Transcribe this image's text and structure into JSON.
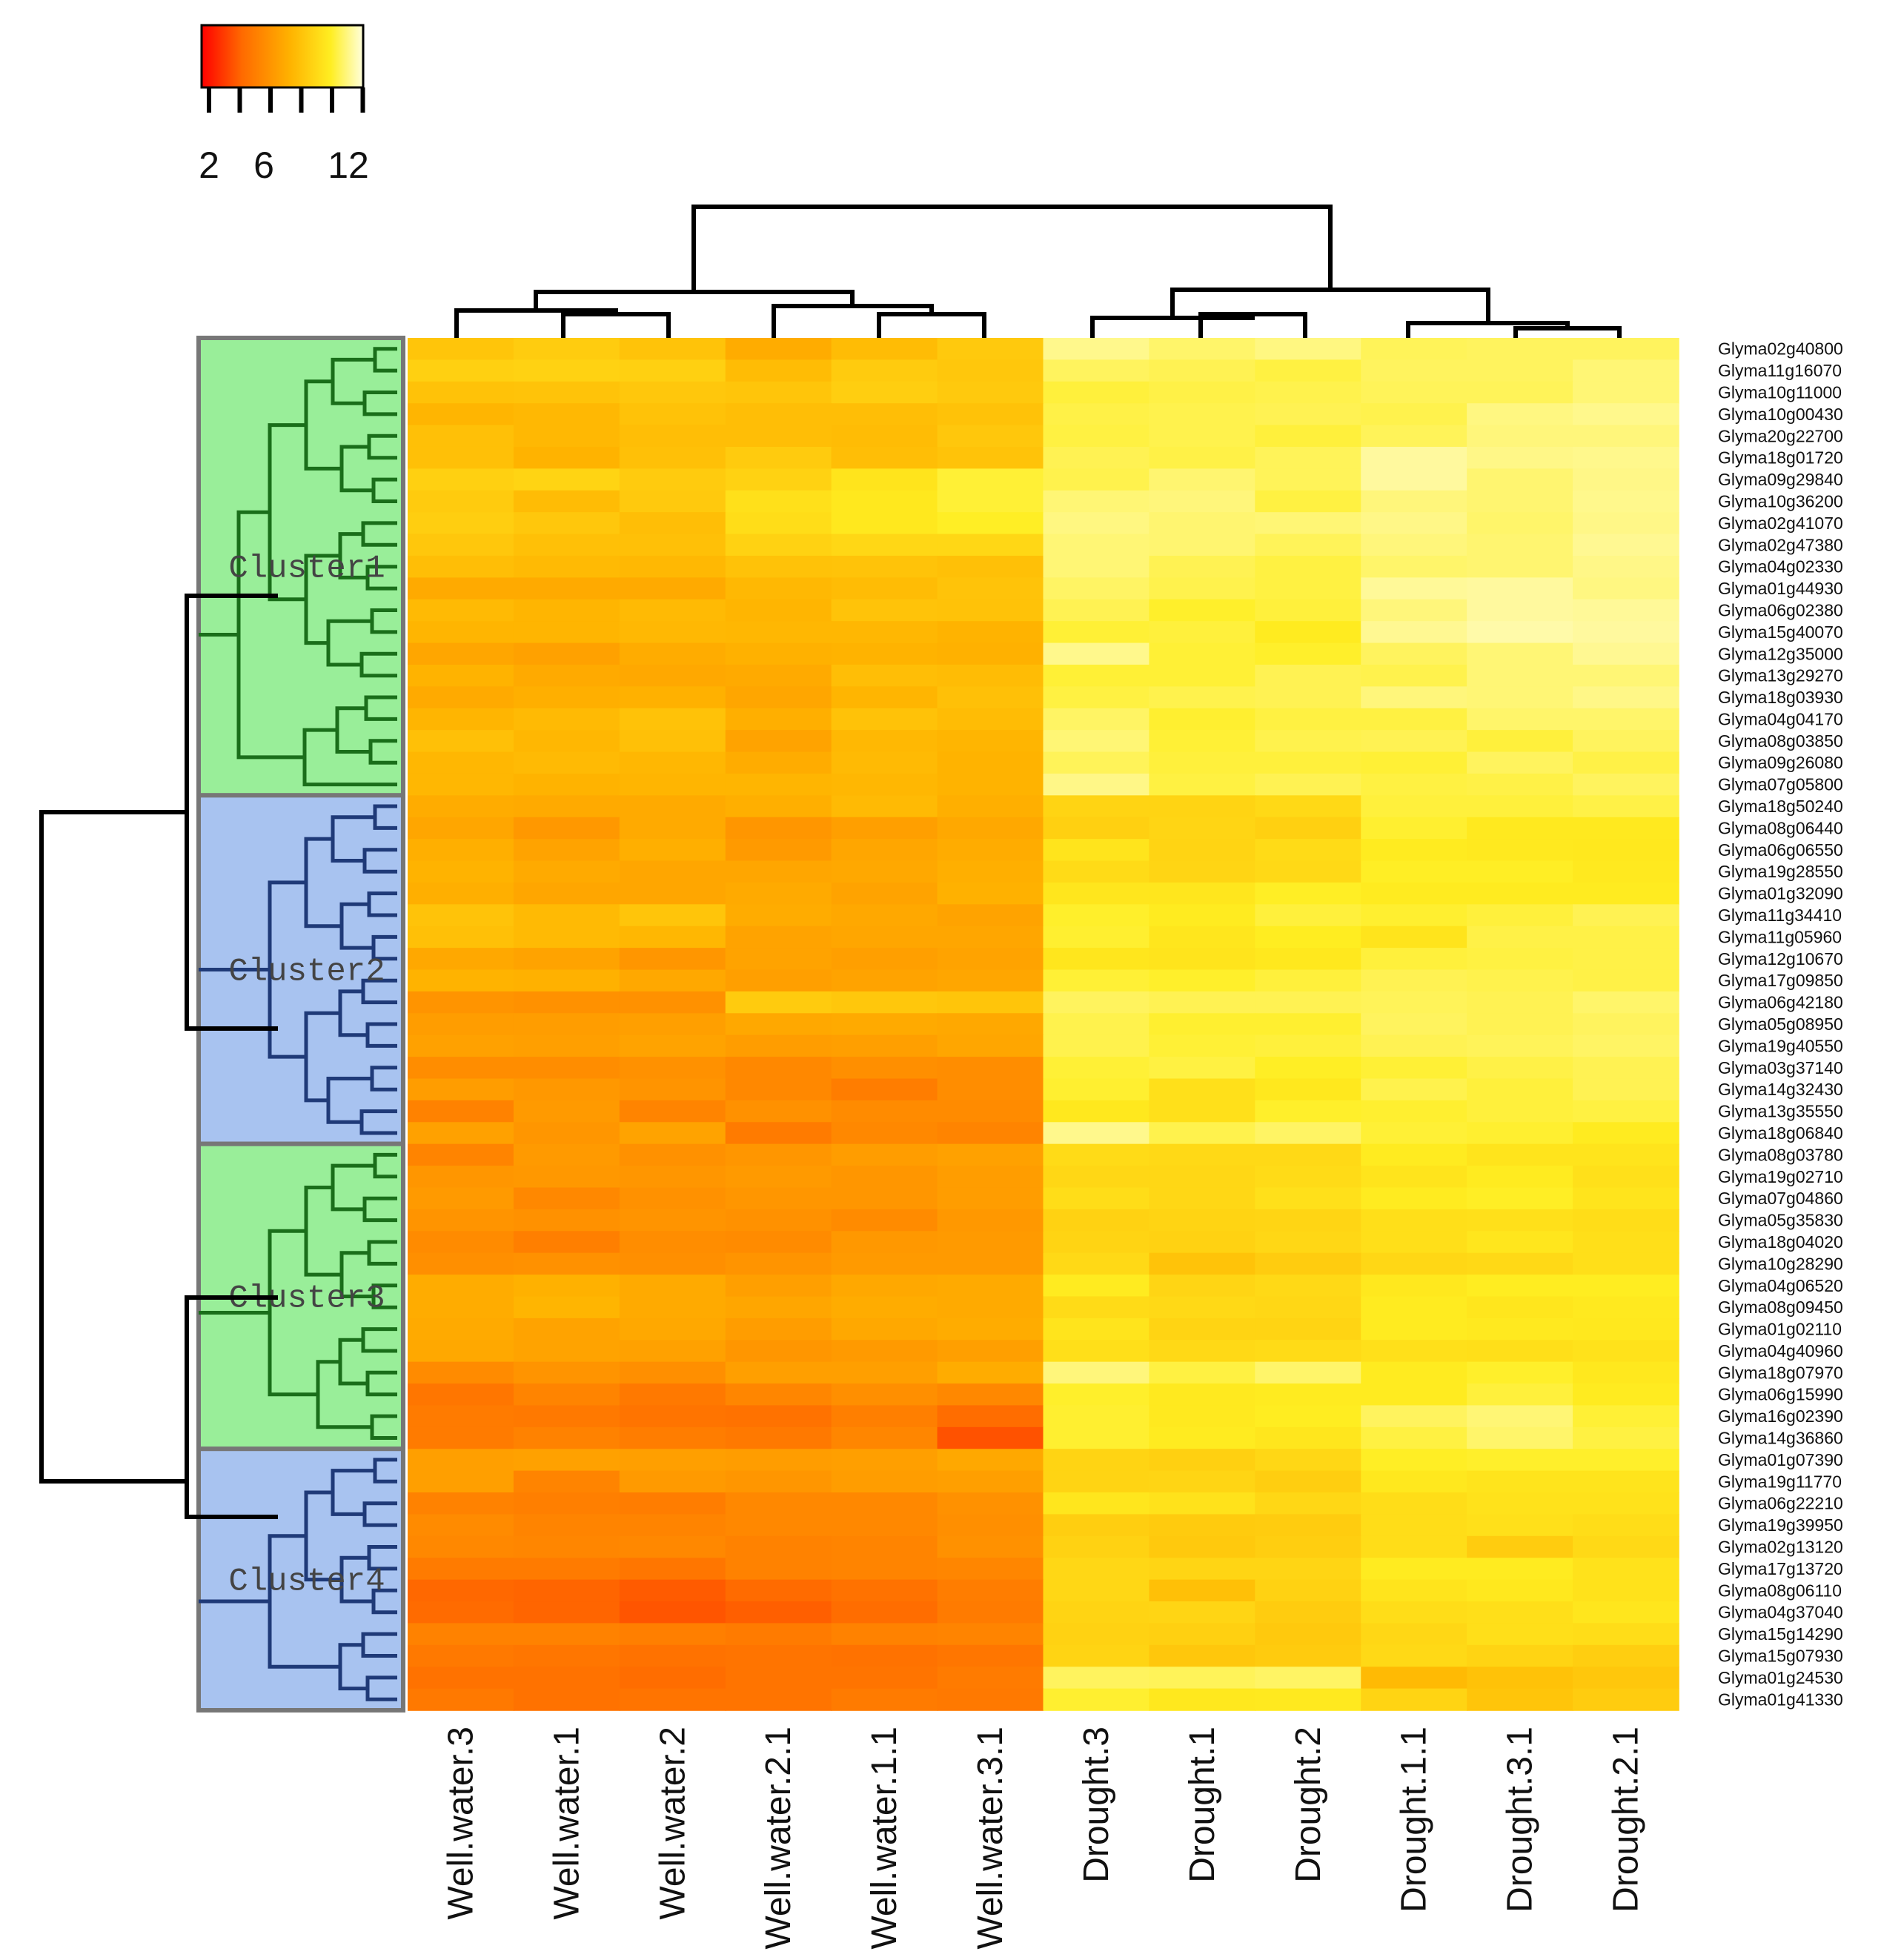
{
  "chart_data": {
    "type": "heatmap",
    "title": "",
    "colorbar": {
      "ticks": [
        "2",
        "6",
        "12"
      ],
      "tick_values": [
        2,
        6,
        12
      ],
      "min": 1,
      "max": 14,
      "colors": [
        "#ff0000",
        "#ff6a00",
        "#ffb300",
        "#ffee22",
        "#ffffdd"
      ]
    },
    "columns": [
      "Well.water.3",
      "Well.water.1",
      "Well.water.2",
      "Well.water.2.1",
      "Well.water.1.1",
      "Well.water.3.1",
      "Drought.3",
      "Drought.1",
      "Drought.2",
      "Drought.1.1",
      "Drought.3.1",
      "Drought.2.1"
    ],
    "rows": [
      "Glyma02g40800",
      "Glyma11g16070",
      "Glyma10g11000",
      "Glyma10g00430",
      "Glyma20g22700",
      "Glyma18g01720",
      "Glyma09g29840",
      "Glyma10g36200",
      "Glyma02g41070",
      "Glyma02g47380",
      "Glyma04g02330",
      "Glyma01g44930",
      "Glyma06g02380",
      "Glyma15g40070",
      "Glyma12g35000",
      "Glyma13g29270",
      "Glyma18g03930",
      "Glyma04g04170",
      "Glyma08g03850",
      "Glyma09g26080",
      "Glyma07g05800",
      "Glyma18g50240",
      "Glyma08g06440",
      "Glyma06g06550",
      "Glyma19g28550",
      "Glyma01g32090",
      "Glyma11g34410",
      "Glyma11g05960",
      "Glyma12g10670",
      "Glyma17g09850",
      "Glyma06g42180",
      "Glyma05g08950",
      "Glyma19g40550",
      "Glyma03g37140",
      "Glyma14g32430",
      "Glyma13g35550",
      "Glyma18g06840",
      "Glyma08g03780",
      "Glyma19g02710",
      "Glyma07g04860",
      "Glyma05g35830",
      "Glyma18g04020",
      "Glyma10g28290",
      "Glyma04g06520",
      "Glyma08g09450",
      "Glyma01g02110",
      "Glyma04g40960",
      "Glyma18g07970",
      "Glyma06g15990",
      "Glyma16g02390",
      "Glyma14g36860",
      "Glyma01g07390",
      "Glyma19g11770",
      "Glyma06g22210",
      "Glyma19g39950",
      "Glyma02g13120",
      "Glyma17g13720",
      "Glyma08g06110",
      "Glyma04g37040",
      "Glyma15g14290",
      "Glyma15g07930",
      "Glyma01g24530",
      "Glyma01g41330"
    ],
    "clusters": [
      {
        "label": "Cluster1",
        "rows": 21,
        "color": "#99ee99",
        "tree_color": "#1a6e1a"
      },
      {
        "label": "Cluster2",
        "rows": 16,
        "color": "#a8c3f0",
        "tree_color": "#1f3a78"
      },
      {
        "label": "Cluster3",
        "rows": 14,
        "color": "#99ee99",
        "tree_color": "#1a6e1a"
      },
      {
        "label": "Cluster4",
        "rows": 12,
        "color": "#a8c3f0",
        "tree_color": "#1f3a78"
      }
    ],
    "values": [
      [
        8.5,
        8.9,
        8.4,
        7.2,
        8.0,
        8.7,
        12.6,
        12.0,
        12.4,
        11.7,
        11.8,
        11.8
      ],
      [
        9.1,
        9.2,
        9.1,
        8.0,
        8.8,
        8.6,
        11.8,
        11.6,
        11.3,
        11.8,
        11.8,
        12.2
      ],
      [
        8.3,
        8.4,
        8.6,
        8.5,
        9.0,
        8.7,
        11.2,
        11.4,
        11.5,
        11.7,
        11.7,
        12.2
      ],
      [
        7.6,
        7.8,
        8.3,
        8.1,
        8.1,
        8.3,
        11.4,
        11.5,
        11.6,
        11.5,
        12.4,
        12.6
      ],
      [
        8.2,
        7.8,
        8.1,
        8.1,
        8.0,
        8.6,
        11.3,
        11.5,
        11.2,
        11.7,
        12.3,
        12.3
      ],
      [
        8.2,
        7.5,
        8.2,
        8.8,
        8.1,
        8.4,
        11.6,
        11.4,
        11.7,
        12.9,
        12.5,
        12.6
      ],
      [
        9.1,
        9.3,
        8.8,
        9.2,
        10.2,
        11.1,
        11.5,
        12.1,
        11.7,
        12.9,
        12.1,
        12.5
      ],
      [
        8.8,
        8.0,
        8.7,
        10.0,
        10.4,
        11.1,
        12.2,
        12.3,
        11.3,
        12.3,
        12.1,
        12.6
      ],
      [
        9.0,
        8.6,
        8.1,
        9.8,
        10.4,
        10.8,
        12.4,
        12.1,
        12.2,
        12.5,
        12.0,
        12.5
      ],
      [
        8.6,
        8.2,
        8.2,
        9.2,
        9.5,
        9.5,
        12.2,
        12.1,
        11.7,
        12.3,
        12.1,
        12.7
      ],
      [
        8.1,
        7.9,
        7.8,
        8.3,
        8.4,
        8.2,
        12.2,
        11.6,
        11.3,
        12.0,
        12.1,
        12.5
      ],
      [
        7.1,
        7.1,
        7.1,
        7.8,
        8.0,
        8.4,
        11.9,
        11.5,
        11.3,
        12.8,
        12.9,
        12.4
      ],
      [
        7.9,
        7.6,
        7.9,
        7.6,
        8.4,
        8.3,
        11.6,
        10.9,
        11.2,
        12.3,
        12.9,
        12.8
      ],
      [
        7.6,
        7.6,
        7.8,
        7.7,
        7.7,
        7.5,
        11.1,
        11.2,
        10.6,
        12.7,
        13.1,
        12.9
      ],
      [
        6.9,
        6.7,
        7.2,
        7.4,
        7.5,
        7.4,
        12.6,
        11.1,
        10.9,
        11.8,
        12.2,
        12.7
      ],
      [
        7.5,
        7.1,
        7.0,
        7.1,
        8.1,
        8.0,
        11.1,
        11.1,
        11.6,
        11.5,
        12.2,
        12.2
      ],
      [
        7.1,
        7.3,
        7.4,
        6.9,
        7.6,
        8.2,
        11.3,
        11.5,
        11.6,
        12.3,
        12.2,
        12.5
      ],
      [
        7.6,
        7.9,
        8.3,
        7.3,
        8.3,
        8.0,
        11.9,
        11.0,
        11.3,
        11.3,
        12.0,
        12.0
      ],
      [
        8.2,
        7.7,
        8.2,
        6.8,
        7.8,
        7.6,
        12.2,
        11.1,
        11.5,
        11.6,
        11.2,
        11.8
      ],
      [
        7.7,
        7.9,
        7.7,
        7.2,
        7.9,
        7.5,
        11.7,
        11.2,
        11.2,
        11.1,
        11.8,
        11.4
      ],
      [
        7.7,
        7.5,
        7.6,
        7.6,
        7.7,
        7.5,
        12.5,
        11.3,
        11.6,
        11.3,
        11.4,
        11.8
      ],
      [
        7.2,
        7.1,
        7.1,
        7.3,
        7.9,
        7.3,
        9.3,
        9.3,
        9.6,
        11.2,
        11.2,
        11.4
      ],
      [
        6.9,
        6.3,
        7.1,
        6.2,
        6.6,
        7.0,
        9.1,
        9.4,
        9.1,
        11.0,
        10.5,
        10.5
      ],
      [
        7.3,
        6.8,
        7.3,
        6.4,
        6.9,
        7.2,
        10.2,
        9.3,
        9.7,
        10.6,
        10.5,
        10.4
      ],
      [
        7.5,
        7.1,
        6.9,
        6.9,
        7.0,
        7.3,
        9.7,
        9.4,
        9.6,
        10.8,
        10.8,
        10.5
      ],
      [
        7.3,
        6.9,
        6.9,
        7.1,
        6.8,
        7.4,
        10.3,
        10.3,
        10.8,
        10.6,
        10.6,
        10.6
      ],
      [
        8.4,
        7.9,
        8.5,
        7.2,
        7.0,
        6.8,
        10.9,
        10.6,
        11.2,
        11.0,
        11.2,
        11.6
      ],
      [
        8.2,
        7.9,
        7.7,
        6.8,
        6.9,
        6.9,
        11.0,
        10.3,
        10.7,
        10.2,
        11.4,
        11.4
      ],
      [
        7.0,
        6.8,
        6.2,
        6.8,
        6.6,
        6.8,
        10.3,
        10.2,
        10.4,
        11.2,
        11.3,
        11.4
      ],
      [
        7.5,
        7.4,
        7.0,
        6.6,
        6.8,
        6.9,
        11.1,
        10.9,
        11.2,
        11.6,
        11.5,
        11.4
      ],
      [
        6.1,
        6.0,
        6.0,
        8.8,
        8.6,
        8.5,
        11.8,
        11.6,
        11.6,
        11.7,
        11.6,
        12.0
      ],
      [
        6.5,
        6.5,
        6.6,
        7.0,
        7.1,
        7.0,
        11.5,
        11.0,
        11.0,
        11.8,
        11.6,
        11.8
      ],
      [
        6.7,
        6.6,
        6.8,
        6.5,
        6.6,
        6.9,
        11.5,
        11.1,
        11.2,
        11.6,
        11.7,
        11.9
      ],
      [
        5.8,
        5.8,
        6.0,
        5.6,
        5.9,
        5.8,
        11.1,
        11.3,
        10.8,
        11.1,
        11.4,
        11.6
      ],
      [
        6.5,
        6.3,
        6.1,
        5.6,
        5.1,
        5.8,
        11.0,
        10.0,
        10.4,
        11.5,
        11.2,
        11.6
      ],
      [
        5.3,
        6.4,
        5.4,
        6.0,
        5.7,
        5.7,
        10.4,
        10.0,
        10.9,
        11.0,
        11.2,
        11.3
      ],
      [
        6.7,
        6.2,
        6.8,
        5.0,
        5.6,
        5.4,
        12.6,
        11.5,
        11.9,
        11.1,
        11.0,
        10.6
      ],
      [
        5.4,
        6.4,
        6.0,
        6.2,
        6.5,
        6.7,
        9.7,
        9.6,
        9.6,
        10.6,
        10.2,
        10.2
      ],
      [
        6.2,
        6.3,
        6.2,
        6.4,
        6.2,
        6.5,
        9.5,
        9.5,
        9.7,
        10.2,
        10.6,
        10.0
      ],
      [
        6.4,
        5.6,
        6.0,
        6.2,
        6.2,
        6.5,
        9.8,
        9.5,
        10.0,
        10.6,
        10.8,
        10.2
      ],
      [
        6.1,
        6.0,
        6.1,
        6.0,
        5.7,
        6.3,
        9.2,
        9.3,
        9.4,
        9.9,
        10.0,
        9.8
      ],
      [
        5.7,
        5.2,
        5.8,
        5.7,
        6.3,
        6.4,
        9.3,
        9.2,
        9.5,
        9.9,
        10.3,
        9.9
      ],
      [
        5.9,
        6.0,
        5.9,
        6.1,
        6.4,
        6.4,
        9.6,
        8.4,
        8.9,
        9.5,
        9.6,
        9.9
      ],
      [
        7.2,
        7.4,
        7.1,
        6.6,
        7.0,
        7.1,
        10.6,
        9.4,
        9.6,
        10.4,
        10.7,
        10.7
      ],
      [
        7.2,
        7.6,
        7.1,
        6.9,
        7.2,
        7.1,
        9.7,
        9.6,
        9.5,
        10.6,
        10.3,
        10.5
      ],
      [
        7.1,
        6.8,
        7.0,
        6.5,
        7.0,
        7.2,
        10.2,
        9.3,
        9.3,
        10.6,
        10.5,
        10.4
      ],
      [
        7.0,
        6.8,
        6.7,
        6.2,
        6.4,
        6.6,
        9.9,
        9.6,
        9.7,
        10.0,
        9.9,
        10.1
      ],
      [
        5.7,
        6.1,
        5.9,
        6.6,
        6.6,
        7.2,
        12.3,
        11.3,
        12.0,
        10.6,
        10.9,
        10.4
      ],
      [
        4.8,
        5.4,
        4.9,
        5.5,
        5.9,
        5.6,
        10.9,
        10.5,
        10.6,
        10.6,
        11.2,
        10.6
      ],
      [
        5.0,
        4.9,
        4.7,
        4.6,
        5.2,
        4.4,
        11.0,
        10.5,
        10.7,
        11.8,
        12.2,
        11.1
      ],
      [
        5.0,
        5.3,
        5.1,
        4.9,
        5.5,
        3.5,
        11.0,
        10.6,
        10.3,
        11.3,
        12.0,
        11.3
      ],
      [
        6.6,
        6.7,
        6.6,
        6.5,
        6.6,
        7.0,
        9.3,
        9.1,
        9.5,
        10.8,
        10.9,
        10.9
      ],
      [
        6.6,
        5.4,
        6.4,
        6.2,
        6.5,
        6.6,
        9.3,
        9.4,
        9.0,
        10.4,
        10.2,
        10.2
      ],
      [
        5.3,
        5.2,
        5.1,
        5.6,
        5.6,
        6.0,
        10.3,
        10.1,
        9.5,
        9.8,
        10.1,
        10.1
      ],
      [
        5.7,
        5.4,
        5.4,
        5.6,
        5.6,
        5.9,
        9.0,
        8.8,
        8.9,
        9.8,
        10.0,
        9.8
      ],
      [
        5.6,
        5.5,
        5.6,
        5.3,
        5.4,
        6.0,
        9.2,
        8.7,
        9.0,
        9.8,
        8.9,
        9.6
      ],
      [
        5.0,
        5.0,
        4.8,
        5.3,
        5.4,
        5.5,
        9.5,
        9.4,
        9.4,
        10.6,
        10.6,
        10.1
      ],
      [
        4.2,
        4.1,
        3.8,
        4.3,
        4.6,
        5.1,
        9.5,
        8.2,
        9.2,
        10.2,
        10.4,
        10.1
      ],
      [
        4.3,
        4.1,
        3.6,
        3.9,
        4.4,
        5.0,
        9.3,
        9.4,
        8.9,
        9.8,
        9.9,
        10.3
      ],
      [
        5.3,
        5.3,
        5.2,
        5.0,
        5.3,
        5.4,
        9.2,
        9.1,
        8.7,
        9.5,
        9.9,
        9.8
      ],
      [
        4.9,
        4.8,
        4.6,
        4.7,
        4.6,
        4.8,
        9.3,
        8.6,
        8.8,
        9.6,
        9.3,
        9.0
      ],
      [
        4.6,
        4.6,
        4.4,
        4.7,
        4.7,
        5.0,
        11.8,
        11.7,
        11.9,
        7.9,
        8.3,
        8.6
      ],
      [
        4.9,
        4.6,
        4.7,
        4.7,
        5.0,
        4.9,
        11.0,
        10.4,
        10.5,
        9.3,
        8.5,
        8.9
      ]
    ]
  }
}
